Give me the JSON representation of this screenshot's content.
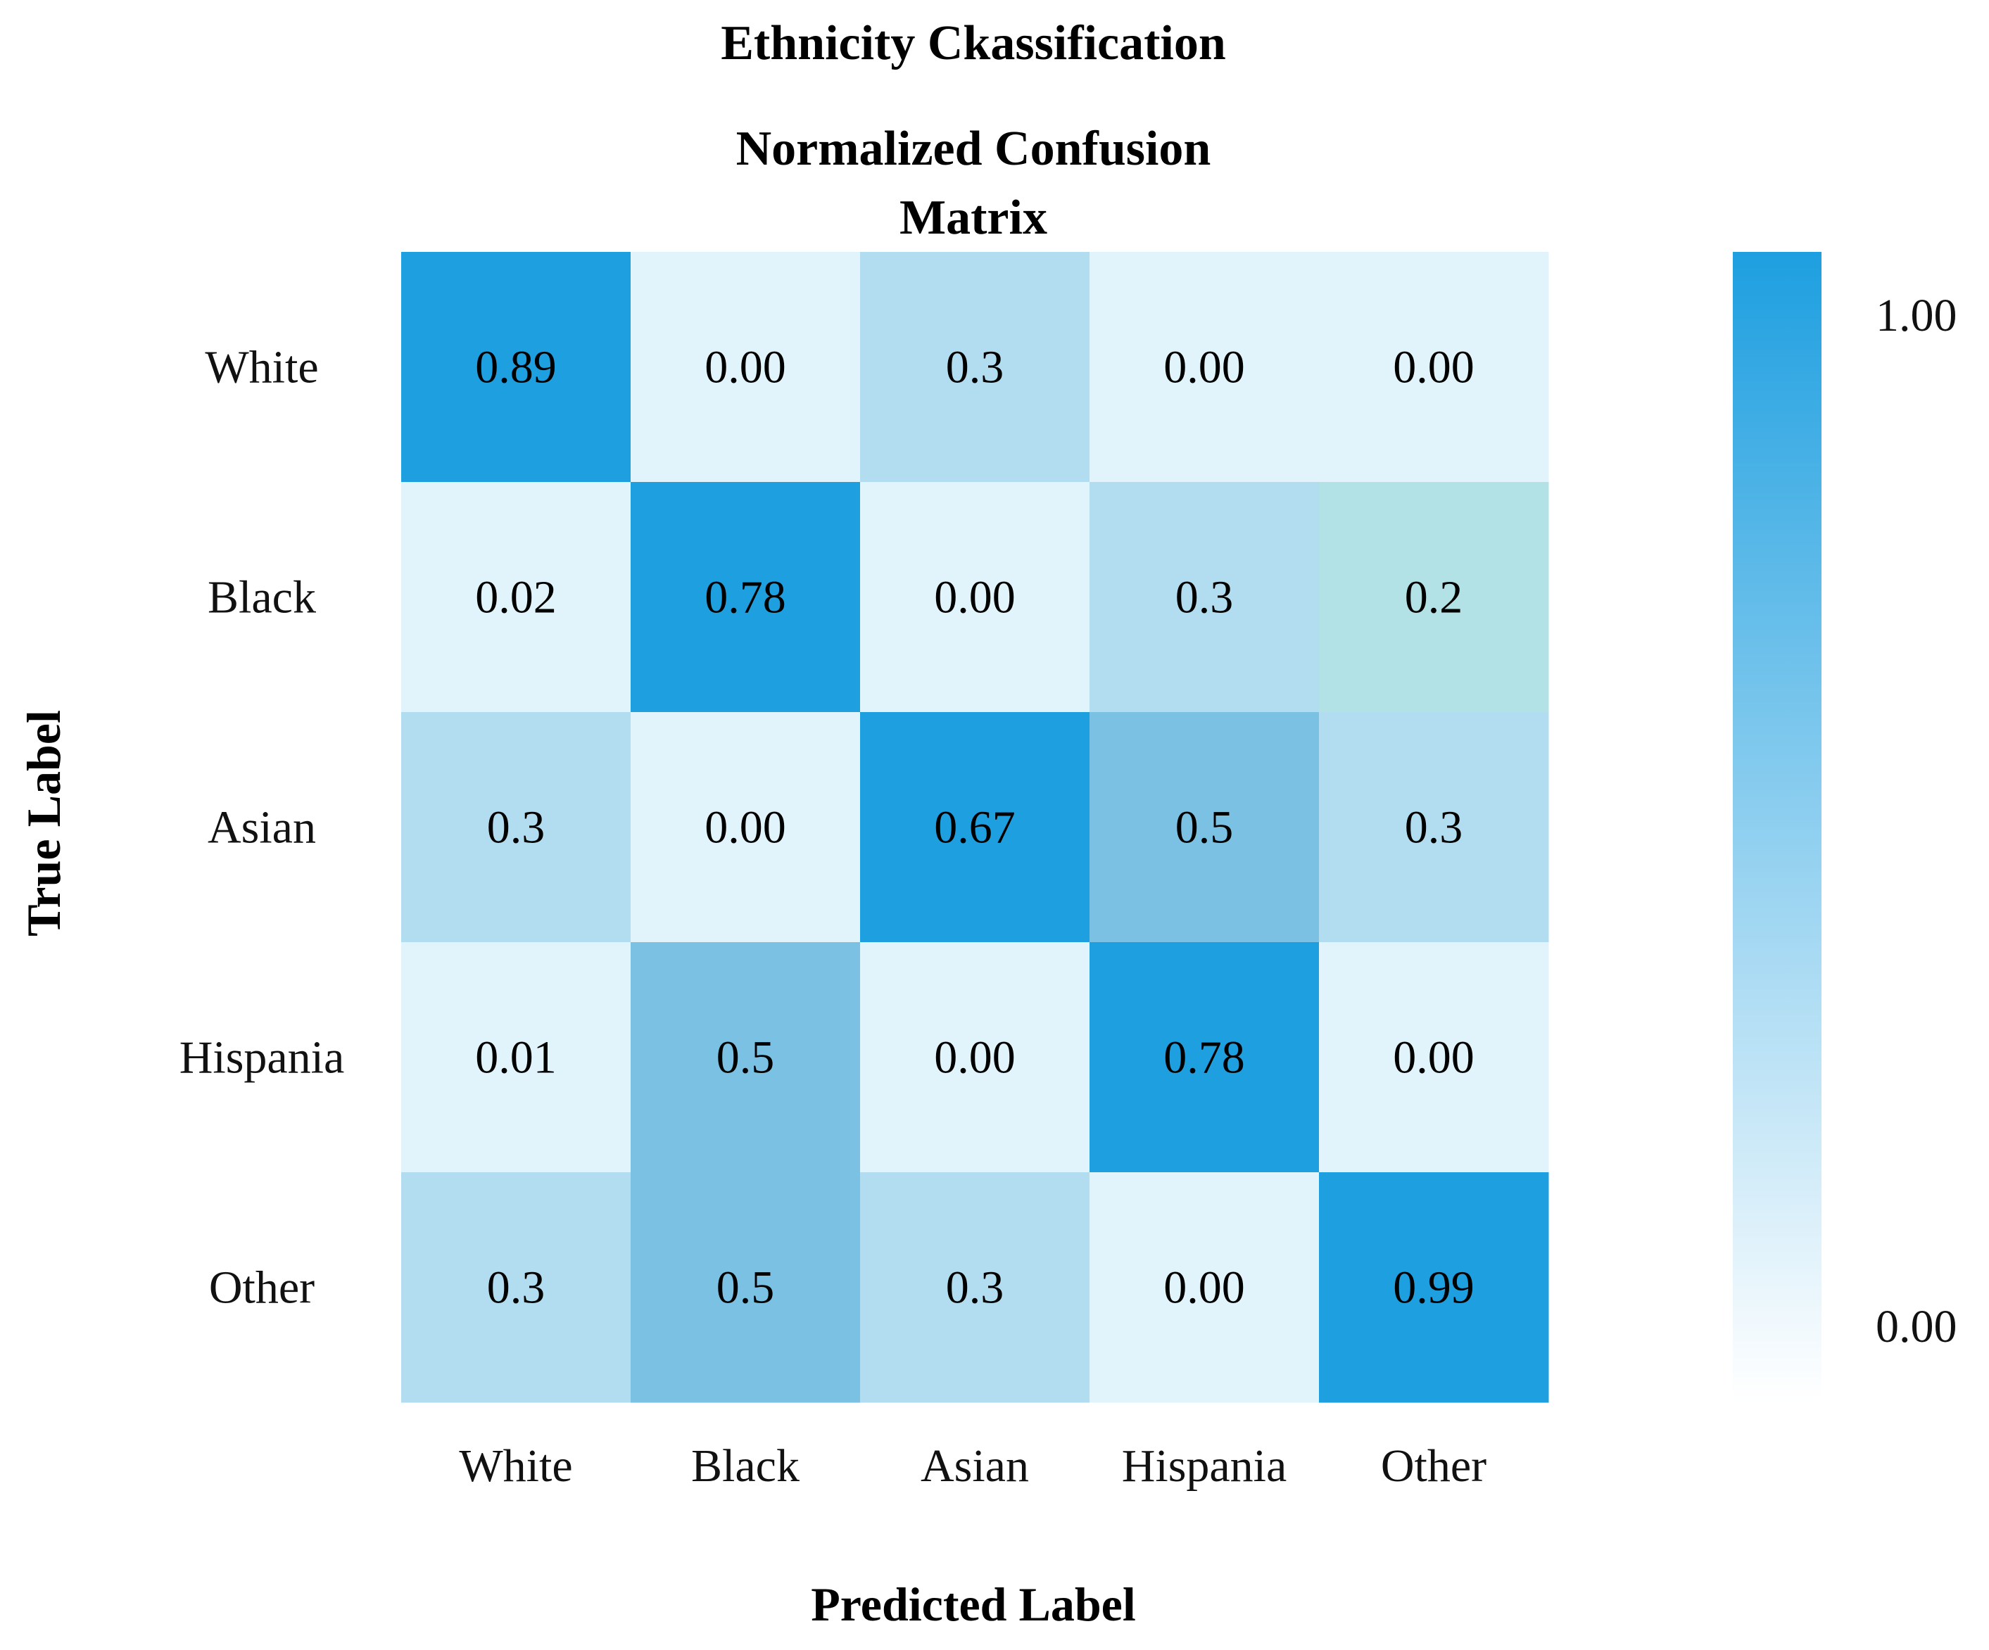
{
  "chart_data": {
    "type": "heatmap",
    "title": "Ethnicity Ckassification",
    "subtitle_lines": [
      "Normalized Confusion",
      "Matrix"
    ],
    "xlabel": "Predicted Label",
    "ylabel": "True Label",
    "row_labels": [
      "White",
      "Black",
      "Asian",
      "Hispania",
      "Other"
    ],
    "col_labels": [
      "White",
      "Black",
      "Asian",
      "Hispania",
      "Other"
    ],
    "matrix": [
      [
        0.89,
        0.0,
        0.3,
        0.0,
        0.0
      ],
      [
        0.02,
        0.78,
        0.0,
        0.3,
        0.2
      ],
      [
        0.3,
        0.0,
        0.67,
        0.5,
        0.3
      ],
      [
        0.01,
        0.5,
        0.0,
        0.78,
        0.0
      ],
      [
        0.3,
        0.5,
        0.3,
        0.0,
        0.99
      ]
    ],
    "cell_text": [
      [
        "0.89",
        "0.00",
        "0.3",
        "0.00",
        "0.00"
      ],
      [
        "0.02",
        "0.78",
        "0.00",
        "0.3",
        "0.2"
      ],
      [
        "0.3",
        "0.00",
        "0.67",
        "0.5",
        "0.3"
      ],
      [
        "0.01",
        "0.5",
        "0.00",
        "0.78",
        "0.00"
      ],
      [
        "0.3",
        "0.5",
        "0.3",
        "0.00",
        "0.99"
      ]
    ],
    "cell_colors": [
      [
        "#1e9fe0",
        "#e1f4fb",
        "#b2ddf0",
        "#e1f4fb",
        "#e1f4fb"
      ],
      [
        "#e1f4fb",
        "#1e9fe0",
        "#e1f4fb",
        "#b2ddf0",
        "#b2e2e6"
      ],
      [
        "#b2ddf0",
        "#e1f4fb",
        "#1e9fe0",
        "#7bc1e3",
        "#b2ddf0"
      ],
      [
        "#e1f4fb",
        "#7bc1e3",
        "#e1f4fb",
        "#1e9fe0",
        "#e1f4fb"
      ],
      [
        "#b2ddf0",
        "#7bc1e3",
        "#b2ddf0",
        "#e1f4fb",
        "#1e9fe0"
      ]
    ],
    "colorbar": {
      "min_label": "0.00",
      "max_label": "1.00",
      "min": 0.0,
      "max": 1.0,
      "color_low": "#ffffff",
      "color_high": "#1e9fe0"
    }
  }
}
